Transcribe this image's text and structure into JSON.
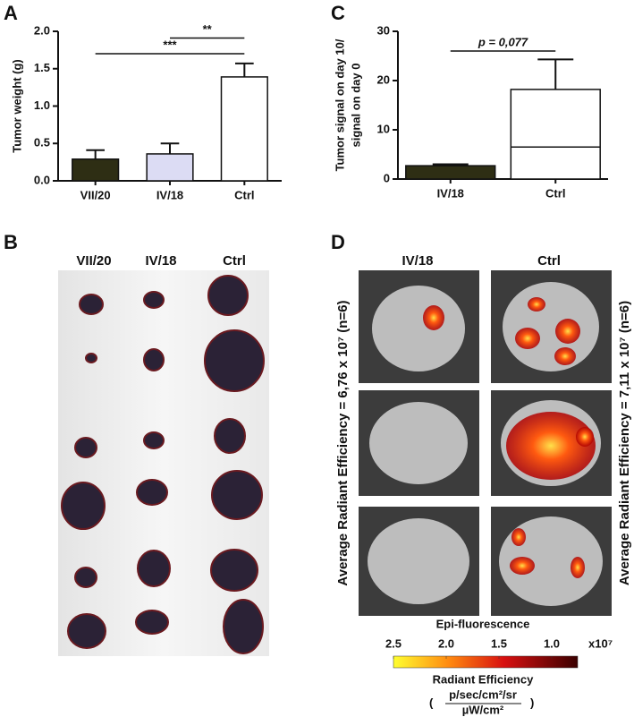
{
  "panel_labels": [
    "A",
    "B",
    "C",
    "D"
  ],
  "chart_data": [
    {
      "type": "bar",
      "ylabel": [
        "Tumor weight (g)"
      ],
      "categories": [
        "VII/20",
        "IV/18",
        "Ctrl"
      ],
      "values": [
        0.29,
        0.36,
        1.39
      ],
      "errors": [
        0.12,
        0.14,
        0.18
      ],
      "colors": [
        "#2e2e14",
        "#dcdcf4",
        "#ffffff"
      ],
      "ylim": [
        0,
        2
      ],
      "yticks": [
        {
          "value": 0,
          "label": "0.0"
        },
        {
          "value": 0.5,
          "label": "0.5"
        },
        {
          "value": 1,
          "label": "1.0"
        },
        {
          "value": 1.5,
          "label": "1.5"
        },
        {
          "value": 2,
          "label": "2.0"
        }
      ],
      "annotations": [
        {
          "text": "***",
          "from": "VII/20",
          "to": "Ctrl",
          "y": 1.7
        },
        {
          "text": "**",
          "from": "IV/18",
          "to": "Ctrl",
          "y": 1.91
        }
      ]
    },
    {
      "type": "bar",
      "ylabel": [
        "Tumor signal on day 10/",
        "signal on day 0"
      ],
      "categories": [
        "IV/18",
        "Ctrl"
      ],
      "values": [
        2.7,
        18.2
      ],
      "errors": [
        0.3,
        6.1
      ],
      "lines": [
        null,
        6.5
      ],
      "colors": [
        "#2e2e14",
        "#ffffff"
      ],
      "ylim": [
        0,
        30
      ],
      "yticks": [
        0,
        10,
        20,
        30
      ],
      "annotations": [
        {
          "text": "p = 0,077",
          "from": "IV/18",
          "to": "Ctrl",
          "y": 26
        }
      ]
    }
  ],
  "photo_panel": {
    "columns": [
      "VII/20",
      "IV/18",
      "Ctrl"
    ]
  },
  "imaging_panel": {
    "columns": [
      "IV/18",
      "Ctrl"
    ],
    "left_label": "Average Radiant Efficiency = 6,76 x 10⁷ (n=6)",
    "right_label": "Average Radiant Efficiency = 7,11 x 10⁷ (n=6)",
    "caption": "Epi-fluorescence",
    "colorbar": {
      "ticks": [
        2.5,
        {
          "value": 2,
          "label": "2.0"
        },
        1.5,
        {
          "value": 1,
          "label": "1.0"
        }
      ],
      "multiplier": "x10⁷",
      "title": "Radiant Efficiency",
      "unit_numerator": "p/sec/cm²/sr",
      "unit_denominator": "µW/cm²"
    }
  }
}
